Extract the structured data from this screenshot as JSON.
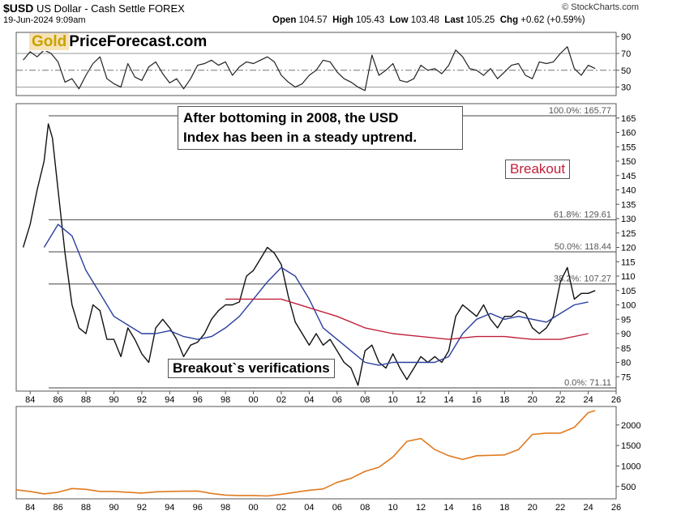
{
  "header": {
    "symbol": "$USD",
    "name": "US Dollar - Cash Settle",
    "exchange": "FOREX",
    "date": "19-Jun-2024 9:09am",
    "brand": "© StockCharts.com",
    "open_label": "Open",
    "open": "104.57",
    "high_label": "High",
    "high": "105.43",
    "low_label": "Low",
    "low": "103.48",
    "last_label": "Last",
    "last": "105.25",
    "chg_label": "Chg",
    "chg": "+0.62 (+0.59%)"
  },
  "logo": {
    "gold": "Gold",
    "rest": "PriceForecast.com"
  },
  "annotations": {
    "callout_line1": "After bottoming in 2008, the USD",
    "callout_line2": "Index has been in a steady uptrend.",
    "breakout": "Breakout",
    "verifications": "Breakout`s verifications"
  },
  "chart_data": [
    {
      "type": "line",
      "panel": "oscillator",
      "y_ticks": [
        30,
        50,
        70,
        90
      ],
      "ylim": [
        20,
        95
      ],
      "reference_lines": [
        30,
        50,
        70
      ],
      "x": [
        1983.5,
        1984,
        1984.5,
        1985,
        1985.5,
        1986,
        1986.5,
        1987,
        1987.5,
        1988,
        1988.5,
        1989,
        1989.5,
        1990,
        1990.5,
        1991,
        1991.5,
        1992,
        1992.5,
        1993,
        1993.5,
        1994,
        1994.5,
        1995,
        1995.5,
        1996,
        1996.5,
        1997,
        1997.5,
        1998,
        1998.5,
        1999,
        1999.5,
        2000,
        2000.5,
        2001,
        2001.5,
        2002,
        2002.5,
        2003,
        2003.5,
        2004,
        2004.5,
        2005,
        2005.5,
        2006,
        2006.5,
        2007,
        2007.5,
        2008,
        2008.5,
        2009,
        2009.5,
        2010,
        2010.5,
        2011,
        2011.5,
        2012,
        2012.5,
        2013,
        2013.5,
        2014,
        2014.5,
        2015,
        2015.5,
        2016,
        2016.5,
        2017,
        2017.5,
        2018,
        2018.5,
        2019,
        2019.5,
        2020,
        2020.5,
        2021,
        2021.5,
        2022,
        2022.5,
        2023,
        2023.5,
        2024,
        2024.5
      ],
      "values": [
        62,
        72,
        66,
        74,
        70,
        60,
        36,
        40,
        28,
        44,
        58,
        66,
        40,
        34,
        30,
        58,
        42,
        38,
        54,
        60,
        46,
        35,
        40,
        28,
        40,
        56,
        58,
        62,
        56,
        60,
        44,
        54,
        60,
        58,
        62,
        66,
        60,
        44,
        36,
        30,
        34,
        44,
        50,
        62,
        60,
        48,
        40,
        36,
        30,
        26,
        68,
        44,
        50,
        58,
        38,
        36,
        40,
        56,
        50,
        52,
        46,
        56,
        74,
        66,
        52,
        50,
        44,
        52,
        40,
        48,
        56,
        58,
        44,
        40,
        60,
        58,
        60,
        70,
        78,
        52,
        44,
        56,
        52
      ]
    },
    {
      "type": "line",
      "panel": "main",
      "title": "$USD US Dollar - Cash Settle FOREX",
      "x_ticks": [
        "84",
        "86",
        "88",
        "90",
        "92",
        "94",
        "96",
        "98",
        "00",
        "02",
        "04",
        "06",
        "08",
        "10",
        "12",
        "14",
        "16",
        "18",
        "20",
        "22",
        "24",
        "26"
      ],
      "y_ticks": [
        75,
        80,
        85,
        90,
        95,
        100,
        105,
        110,
        115,
        120,
        125,
        130,
        135,
        140,
        145,
        150,
        155,
        160,
        165
      ],
      "ylim": [
        70,
        170
      ],
      "xlim": [
        1983,
        2026
      ],
      "fib_levels": [
        {
          "label": "100.0%: 165.77",
          "value": 165.77
        },
        {
          "label": "61.8%: 129.61",
          "value": 129.61
        },
        {
          "label": "50.0%: 118.44",
          "value": 118.44
        },
        {
          "label": "38.2%: 107.27",
          "value": 107.27
        },
        {
          "label": "0.0%: 71.11",
          "value": 71.11
        }
      ],
      "series": [
        {
          "x": [
            1983.5,
            1984,
            1984.5,
            1985,
            1985.3,
            1985.6,
            1986,
            1986.5,
            1987,
            1987.5,
            1988,
            1988.5,
            1989,
            1989.5,
            1990,
            1990.5,
            1991,
            1991.5,
            1992,
            1992.5,
            1993,
            1993.5,
            1994,
            1994.5,
            1995,
            1995.5,
            1996,
            1996.5,
            1997,
            1997.5,
            1998,
            1998.5,
            1999,
            1999.5,
            2000,
            2000.5,
            2001,
            2001.5,
            2002,
            2002.5,
            2003,
            2003.5,
            2004,
            2004.5,
            2005,
            2005.5,
            2006,
            2006.5,
            2007,
            2007.5,
            2008,
            2008.5,
            2009,
            2009.5,
            2010,
            2010.5,
            2011,
            2011.5,
            2012,
            2012.5,
            2013,
            2013.5,
            2014,
            2014.5,
            2015,
            2015.5,
            2016,
            2016.5,
            2017,
            2017.5,
            2018,
            2018.5,
            2019,
            2019.5,
            2020,
            2020.5,
            2021,
            2021.5,
            2022,
            2022.5,
            2023,
            2023.5,
            2024,
            2024.5
          ],
          "values": [
            120,
            128,
            140,
            150,
            163,
            158,
            140,
            118,
            100,
            92,
            90,
            100,
            98,
            88,
            88,
            82,
            92,
            88,
            83,
            80,
            92,
            95,
            92,
            88,
            82,
            86,
            87,
            90,
            95,
            98,
            100,
            100,
            101,
            110,
            112,
            116,
            120,
            118,
            114,
            103,
            94,
            90,
            86,
            90,
            86,
            88,
            84,
            80,
            78,
            72,
            84,
            86,
            80,
            78,
            83,
            78,
            74,
            78,
            82,
            80,
            82,
            80,
            84,
            96,
            100,
            98,
            96,
            100,
            95,
            92,
            96,
            96,
            98,
            97,
            92,
            90,
            92,
            96,
            108,
            113,
            102,
            104,
            104,
            105
          ]
        },
        {
          "x": [
            1985,
            1986,
            1987,
            1988,
            1989,
            1990,
            1991,
            1992,
            1993,
            1994,
            1995,
            1996,
            1997,
            1998,
            1999,
            2000,
            2001,
            2002,
            2003,
            2004,
            2005,
            2006,
            2007,
            2008,
            2009,
            2010,
            2011,
            2012,
            2013,
            2014,
            2015,
            2016,
            2017,
            2018,
            2019,
            2020,
            2021,
            2022,
            2023,
            2024
          ],
          "values": [
            120,
            128,
            124,
            112,
            104,
            96,
            93,
            90,
            90,
            91,
            89,
            88,
            89,
            92,
            96,
            102,
            108,
            113,
            110,
            102,
            92,
            88,
            84,
            80,
            79,
            80,
            80,
            80,
            80,
            82,
            90,
            95,
            97,
            95,
            96,
            95,
            94,
            97,
            100,
            101
          ]
        },
        {
          "x": [
            1998,
            2000,
            2002,
            2004,
            2006,
            2008,
            2010,
            2012,
            2014,
            2016,
            2018,
            2020,
            2022,
            2024
          ],
          "values": [
            102,
            102,
            102,
            99,
            96,
            92,
            90,
            89,
            88,
            89,
            89,
            88,
            88,
            90
          ]
        }
      ]
    },
    {
      "type": "line",
      "panel": "gold",
      "y_ticks": [
        500,
        1000,
        1500,
        2000
      ],
      "ylim": [
        200,
        2450
      ],
      "x": [
        1983,
        1984,
        1985,
        1986,
        1987,
        1988,
        1989,
        1990,
        1991,
        1992,
        1993,
        1994,
        1995,
        1996,
        1997,
        1998,
        1999,
        2000,
        2001,
        2002,
        2003,
        2004,
        2005,
        2006,
        2007,
        2008,
        2009,
        2010,
        2011,
        2012,
        2013,
        2014,
        2015,
        2016,
        2017,
        2018,
        2019,
        2020,
        2021,
        2022,
        2023,
        2024,
        2024.5
      ],
      "values": [
        420,
        380,
        320,
        360,
        450,
        430,
        380,
        380,
        360,
        340,
        370,
        380,
        385,
        390,
        330,
        290,
        280,
        280,
        270,
        310,
        360,
        410,
        440,
        600,
        700,
        870,
        970,
        1220,
        1600,
        1670,
        1400,
        1250,
        1160,
        1250,
        1260,
        1270,
        1400,
        1770,
        1800,
        1800,
        1940,
        2300,
        2350
      ]
    }
  ]
}
